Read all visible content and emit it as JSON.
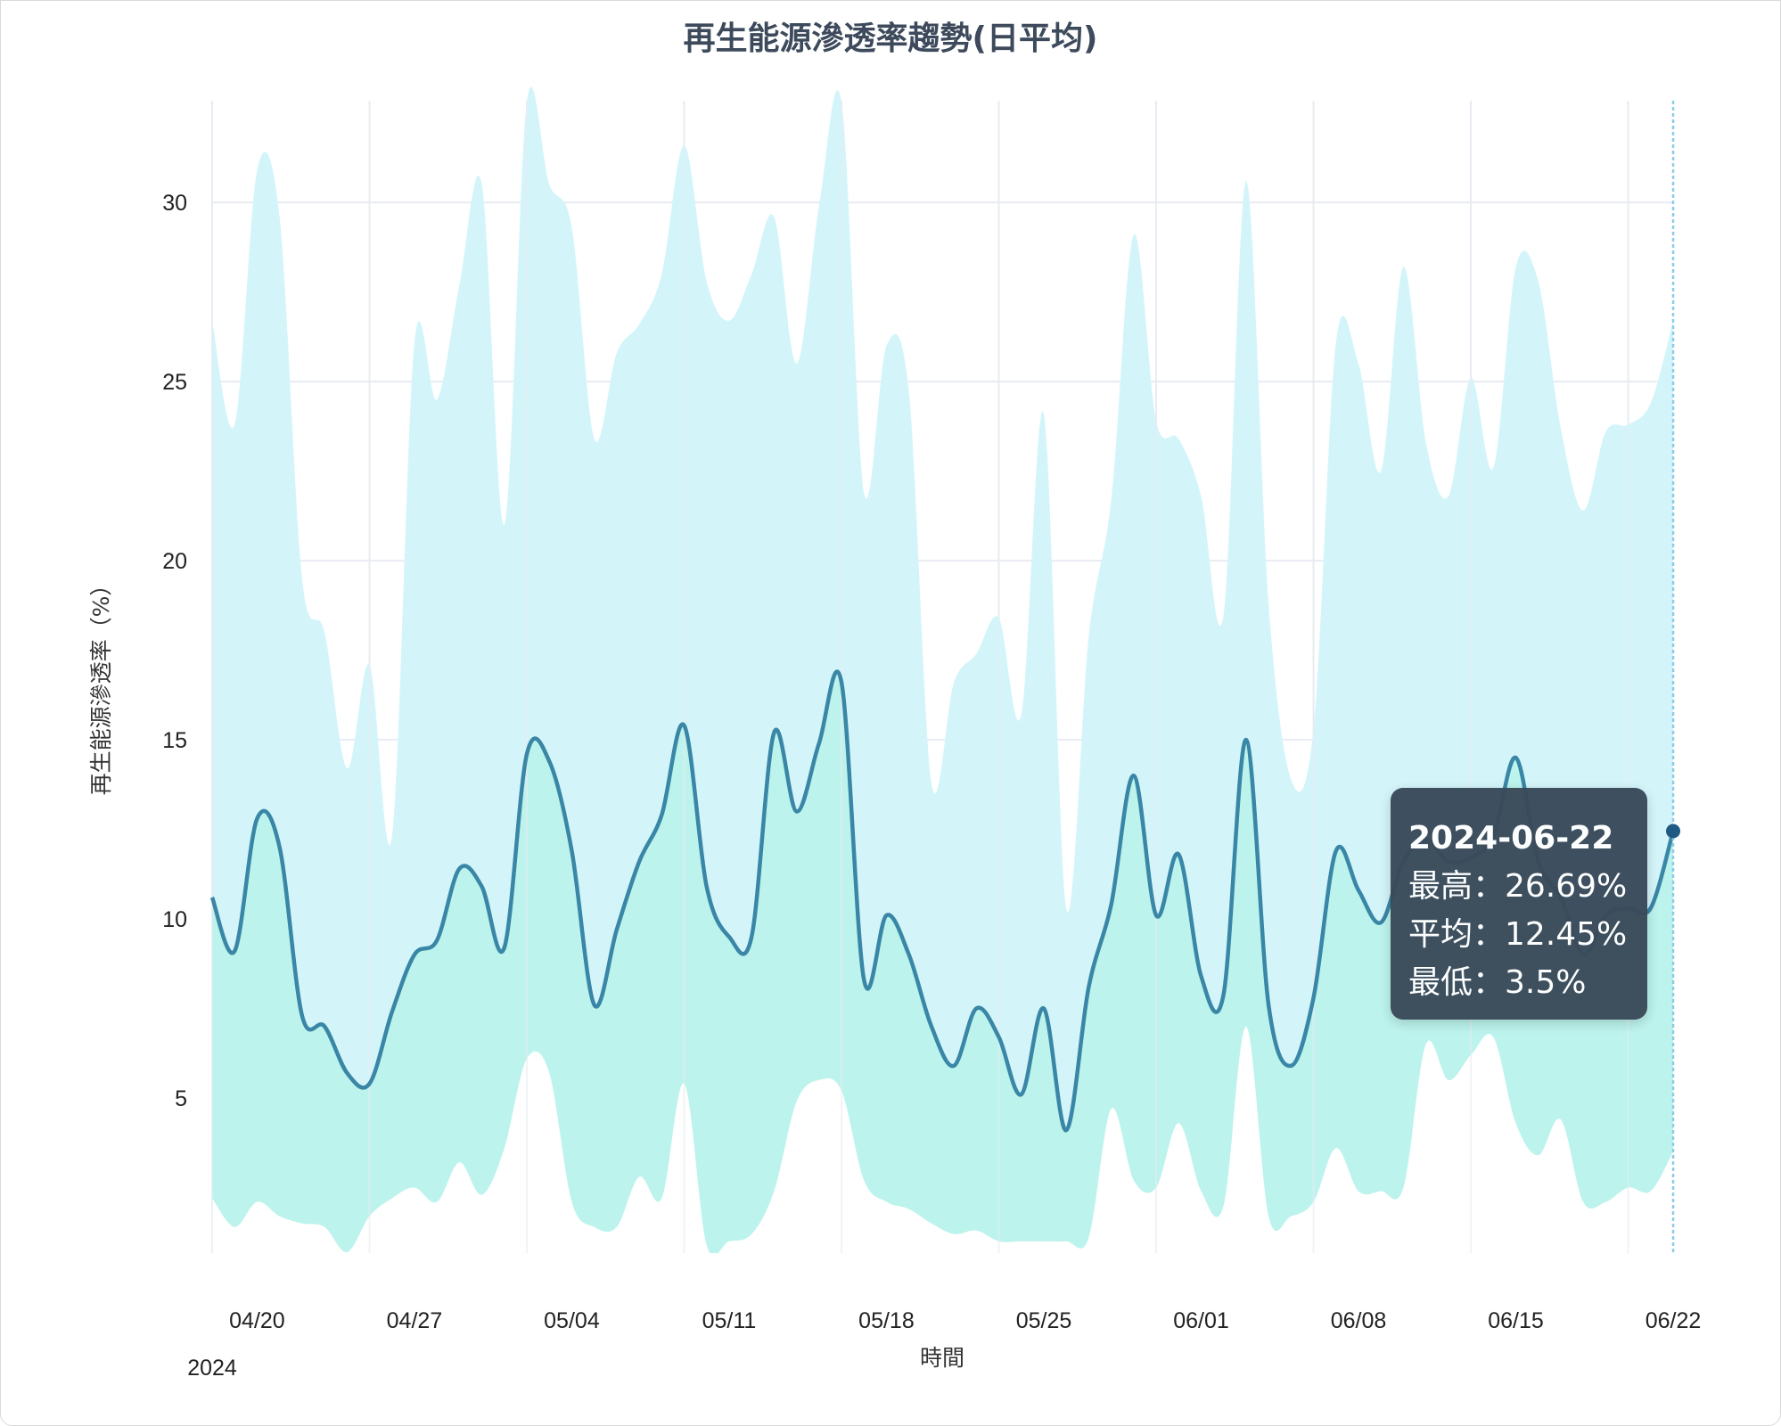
{
  "title": "再生能源滲透率趨勢(日平均)",
  "axes": {
    "ylabel": "再生能源滲透率（%）",
    "xlabel": "時間",
    "year_label": "2024",
    "y_ticks": [
      "5",
      "10",
      "15",
      "20",
      "25",
      "30"
    ],
    "x_ticks": [
      "04/20",
      "04/27",
      "05/04",
      "05/11",
      "05/18",
      "05/25",
      "06/01",
      "06/08",
      "06/15",
      "06/22"
    ]
  },
  "tooltip": {
    "date": "2024-06-22",
    "max_label": "最高：26.69%",
    "avg_label": "平均：12.45%",
    "min_label": "最低：3.5%"
  },
  "colors": {
    "max_band": "#d3f5fa",
    "min_band": "#bcf3ec",
    "avg_line": "#3a86a6",
    "hover_point": "#1f5a85",
    "hover_line": "#8ccbe8",
    "grid": "#e8ecf2",
    "tooltip_bg": "#3a4a5a"
  },
  "chart_data": {
    "type": "area",
    "title": "再生能源滲透率趨勢(日平均)",
    "xlabel": "時間",
    "ylabel": "再生能源滲透率（%）",
    "ylim": [
      0.67,
      32.84
    ],
    "grid": true,
    "legend": "none",
    "x": [
      "04/18",
      "04/19",
      "04/20",
      "04/21",
      "04/22",
      "04/23",
      "04/24",
      "04/25",
      "04/26",
      "04/27",
      "04/28",
      "04/29",
      "04/30",
      "05/01",
      "05/02",
      "05/03",
      "05/04",
      "05/05",
      "05/06",
      "05/07",
      "05/08",
      "05/09",
      "05/10",
      "05/11",
      "05/12",
      "05/13",
      "05/14",
      "05/15",
      "05/16",
      "05/17",
      "05/18",
      "05/19",
      "05/20",
      "05/21",
      "05/22",
      "05/23",
      "05/24",
      "05/25",
      "05/26",
      "05/27",
      "05/28",
      "05/29",
      "05/30",
      "05/31",
      "06/01",
      "06/02",
      "06/03",
      "06/04",
      "06/05",
      "06/06",
      "06/07",
      "06/08",
      "06/09",
      "06/10",
      "06/11",
      "06/12",
      "06/13",
      "06/14",
      "06/15",
      "06/16",
      "06/17",
      "06/18",
      "06/19",
      "06/20",
      "06/21",
      "06/22"
    ],
    "series": [
      {
        "name": "最高",
        "values": [
          26.7,
          23.8,
          30.9,
          29.6,
          19.5,
          18.0,
          14.2,
          17.1,
          12.3,
          26.1,
          24.5,
          27.7,
          30.5,
          21.0,
          32.8,
          30.5,
          29.3,
          23.4,
          25.8,
          26.6,
          28.0,
          31.6,
          27.8,
          26.7,
          28.0,
          29.6,
          25.5,
          29.9,
          32.8,
          21.9,
          26.0,
          24.7,
          13.8,
          16.6,
          17.4,
          18.4,
          15.7,
          24.1,
          10.3,
          17.9,
          21.7,
          29.1,
          23.9,
          23.4,
          21.8,
          18.5,
          30.6,
          18.8,
          13.9,
          15.3,
          26.1,
          25.5,
          22.5,
          28.2,
          23.3,
          21.8,
          25.1,
          22.6,
          28.2,
          27.8,
          23.7,
          21.4,
          23.6,
          23.8,
          24.4,
          26.69
        ]
      },
      {
        "name": "平均",
        "values": [
          10.6,
          9.1,
          12.8,
          12.0,
          7.3,
          7.0,
          5.7,
          5.4,
          7.4,
          9.0,
          9.4,
          11.4,
          10.9,
          9.2,
          14.6,
          14.4,
          11.9,
          7.6,
          9.7,
          11.6,
          12.9,
          15.4,
          10.9,
          9.5,
          9.5,
          15.2,
          13.0,
          14.9,
          16.6,
          8.3,
          10.1,
          9.0,
          7.0,
          5.9,
          7.5,
          6.7,
          5.1,
          7.5,
          4.1,
          8.1,
          10.4,
          14.0,
          10.1,
          11.8,
          8.4,
          7.9,
          15.0,
          7.6,
          5.9,
          7.8,
          11.9,
          10.8,
          9.9,
          11.6,
          12.2,
          11.6,
          11.7,
          12.3,
          14.5,
          11.6,
          10.6,
          9.0,
          10.1,
          10.3,
          10.3,
          12.45
        ]
      },
      {
        "name": "最低",
        "values": [
          2.2,
          1.4,
          2.1,
          1.7,
          1.5,
          1.4,
          0.7,
          1.7,
          2.2,
          2.5,
          2.1,
          3.2,
          2.3,
          3.6,
          6.1,
          5.7,
          2.1,
          1.4,
          1.4,
          2.8,
          2.2,
          5.4,
          0.9,
          1.0,
          1.2,
          2.4,
          4.9,
          5.5,
          5.2,
          2.7,
          2.1,
          1.9,
          1.5,
          1.2,
          1.3,
          1.0,
          1.0,
          1.0,
          1.0,
          1.1,
          4.7,
          2.7,
          2.5,
          4.3,
          2.4,
          2.0,
          7.0,
          1.7,
          1.7,
          2.1,
          3.6,
          2.4,
          2.4,
          2.5,
          6.5,
          5.5,
          6.2,
          6.7,
          4.3,
          3.4,
          4.4,
          2.1,
          2.1,
          2.5,
          2.4,
          3.5
        ]
      }
    ],
    "highlighted_point": {
      "x": "06/22",
      "max": 26.69,
      "avg": 12.45,
      "min": 3.5
    }
  }
}
